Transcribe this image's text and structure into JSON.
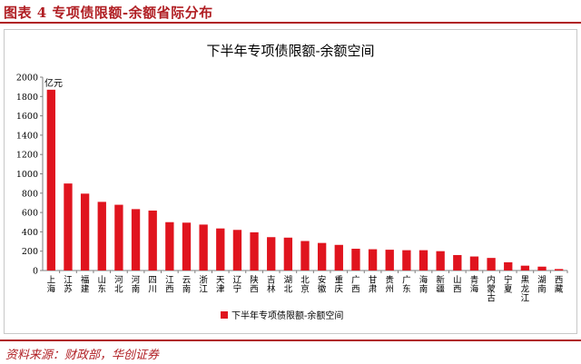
{
  "header": {
    "figure_title": "图表 4  专项债限额-余额省际分布"
  },
  "footer": {
    "source": "资料来源：财政部，华创证券"
  },
  "colors": {
    "accent": "#b01e23",
    "bar": "#e0141e",
    "axis": "#7f7f7f"
  },
  "chart_data": {
    "type": "bar",
    "title": "下半年专项债限额-余额空间",
    "unit_label": "亿元",
    "xlabel": "",
    "ylabel": "",
    "ylim": [
      0,
      2000
    ],
    "yticks": [
      0,
      200,
      400,
      600,
      800,
      1000,
      1200,
      1400,
      1600,
      1800,
      2000
    ],
    "grid": false,
    "legend_position": "bottom-center",
    "categories": [
      "上海",
      "江苏",
      "福建",
      "山东",
      "河北",
      "河南",
      "四川",
      "江西",
      "云南",
      "浙江",
      "天津",
      "辽宁",
      "陕西",
      "吉林",
      "湖北",
      "北京",
      "安徽",
      "重庆",
      "广西",
      "甘肃",
      "贵州",
      "广东",
      "海南",
      "新疆",
      "山西",
      "青海",
      "内蒙古",
      "宁夏",
      "黑龙江",
      "湖南",
      "西藏"
    ],
    "series": [
      {
        "name": "下半年专项债限额-余额空间",
        "values": [
          1870,
          900,
          795,
          710,
          680,
          635,
          620,
          500,
          495,
          475,
          435,
          420,
          395,
          345,
          340,
          305,
          285,
          265,
          225,
          220,
          215,
          210,
          210,
          200,
          160,
          145,
          130,
          85,
          50,
          40,
          15
        ]
      }
    ]
  }
}
